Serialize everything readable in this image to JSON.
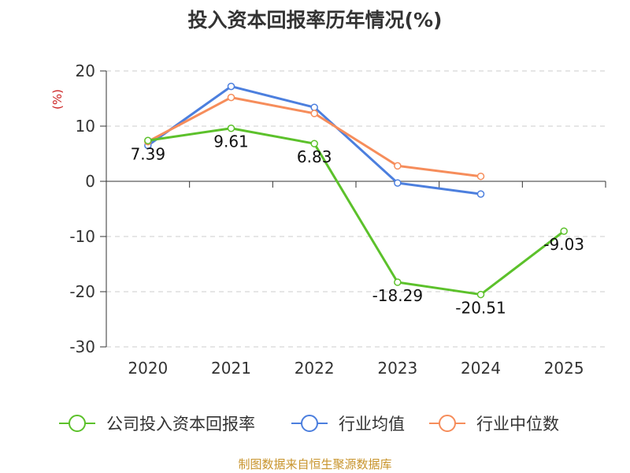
{
  "title": "投入资本回报率历年情况(%)",
  "source": "制图数据来自恒生聚源数据库",
  "chart_data": {
    "type": "line",
    "title": "投入资本回报率历年情况(%)",
    "ylabel": "(%)",
    "xlabel": "",
    "categories": [
      "2020",
      "2021",
      "2022",
      "2023",
      "2024",
      "2025"
    ],
    "ylim": [
      -30,
      20
    ],
    "yticks": [
      "20",
      "10",
      "0",
      "-10",
      "-20",
      "-30"
    ],
    "grid": "horizontal dashed",
    "legend_position": "bottom",
    "series": [
      {
        "name": "公司投入资本回报率",
        "color": "#5cc12b",
        "values": [
          7.39,
          9.61,
          6.83,
          -18.29,
          -20.51,
          -9.03
        ],
        "labels": [
          "7.39",
          "9.61",
          "6.83",
          "-18.29",
          "-20.51",
          "-9.03"
        ]
      },
      {
        "name": "行业均值",
        "color": "#4c7fde",
        "values": [
          6.5,
          17.2,
          13.4,
          -0.3,
          -2.3,
          null
        ]
      },
      {
        "name": "行业中位数",
        "color": "#f68d5b",
        "values": [
          7.2,
          15.2,
          12.3,
          2.8,
          0.9,
          null
        ]
      }
    ]
  }
}
